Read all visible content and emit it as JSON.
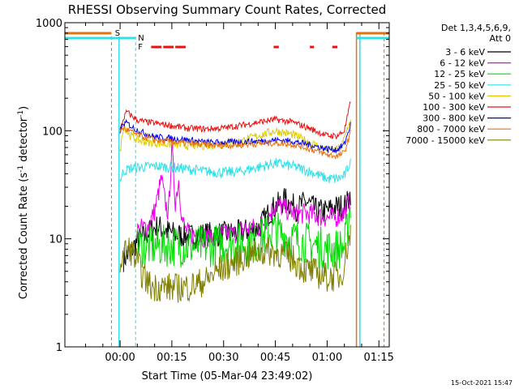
{
  "chart_data": {
    "type": "line",
    "title": "RHESSI Observing Summary Count Rates, Corrected",
    "xlabel": "Start Time (05-Mar-04 23:49:02)",
    "ylabel_main": "Corrected Count Rate (s",
    "ylabel_sup1": "-1",
    "ylabel_mid": " detector",
    "ylabel_sup2": "-1",
    "ylabel_end": ")",
    "y_scale": "log",
    "ylim": [
      1,
      1000
    ],
    "xlim_minutes": [
      -16,
      78
    ],
    "x_ticks": [
      {
        "minute": 0,
        "label": "00:00"
      },
      {
        "minute": 15,
        "label": "00:15"
      },
      {
        "minute": 30,
        "label": "00:30"
      },
      {
        "minute": 45,
        "label": "00:45"
      },
      {
        "minute": 60,
        "label": "01:00"
      },
      {
        "minute": 75,
        "label": "01:15"
      }
    ],
    "y_ticks": [
      {
        "value": 1,
        "label": "1"
      },
      {
        "value": 10,
        "label": "10"
      },
      {
        "value": 100,
        "label": "100"
      },
      {
        "value": 1000,
        "label": "1000"
      }
    ],
    "legend": {
      "placement": "right",
      "header_line1": "Det 1,3,4,5,6,9,",
      "header_line2": "Att 0"
    },
    "flags": [
      {
        "letter": "S",
        "color": "#e87010"
      },
      {
        "letter": "N",
        "color": "#30e0e8"
      },
      {
        "letter": "F",
        "color": "#ee1010"
      }
    ],
    "series": [
      {
        "name": "3 - 6 keV",
        "color": "#000000",
        "x": [
          1,
          3,
          4,
          5,
          7,
          9,
          11,
          13,
          16,
          20,
          25,
          30,
          35,
          40,
          43,
          45,
          48,
          51,
          54,
          57,
          60,
          62,
          64,
          65,
          66,
          67
        ],
        "y": [
          6.5,
          7.5,
          8.5,
          9.5,
          10.5,
          12,
          13,
          12,
          11,
          10.5,
          11,
          11,
          11.5,
          12.5,
          17,
          20,
          23,
          19,
          22,
          18,
          18,
          19.5,
          20,
          20,
          22,
          28
        ]
      },
      {
        "name": "6 - 12 keV",
        "color": "#ee00ee",
        "x": [
          5,
          8,
          10,
          12,
          13,
          14,
          15,
          16,
          17,
          18,
          19,
          20,
          23,
          26,
          30,
          33,
          36,
          40,
          43,
          45,
          48,
          51,
          55,
          58,
          62,
          65,
          66,
          67
        ],
        "y": [
          12,
          13,
          18,
          36,
          22,
          17,
          70,
          22,
          35,
          15,
          12,
          11,
          10.5,
          10.5,
          11,
          11,
          12.5,
          12.5,
          16,
          21,
          19,
          17,
          17,
          16,
          15.5,
          17.5,
          21,
          24
        ]
      },
      {
        "name": "12 - 25 keV",
        "color": "#00dd00",
        "x": [
          5,
          10,
          15,
          20,
          25,
          30,
          35,
          40,
          44,
          47,
          50,
          55,
          60,
          63,
          65,
          66,
          67
        ],
        "y": [
          8.5,
          8.5,
          8.7,
          8.5,
          8.5,
          9,
          9,
          9.5,
          12,
          11,
          10,
          9,
          8,
          8,
          8.5,
          13,
          25
        ]
      },
      {
        "name": "25 - 50 keV",
        "color": "#30e0e8",
        "x": [
          0,
          1,
          3,
          6,
          10,
          15,
          20,
          25,
          30,
          35,
          40,
          45,
          50,
          55,
          60,
          63,
          65,
          66,
          67
        ],
        "y": [
          35,
          42,
          45,
          46,
          47,
          46,
          44,
          42,
          41,
          42,
          46,
          50,
          47,
          42,
          36,
          36,
          38,
          45,
          55
        ]
      },
      {
        "name": "50 - 100 keV",
        "color": "#ddcc00",
        "x": [
          0,
          1,
          2,
          3,
          5,
          8,
          12,
          16,
          20,
          25,
          30,
          35,
          40,
          45,
          50,
          55,
          60,
          62,
          64,
          65,
          66,
          67
        ],
        "y": [
          62,
          115,
          98,
          90,
          82,
          78,
          76,
          74,
          73,
          73,
          75,
          80,
          90,
          100,
          92,
          78,
          66,
          65,
          70,
          85,
          110,
          125
        ]
      },
      {
        "name": "100 - 300 keV",
        "color": "#ee1010",
        "x": [
          0,
          1,
          2,
          3,
          5,
          8,
          12,
          16,
          20,
          25,
          30,
          35,
          40,
          45,
          50,
          55,
          60,
          63,
          65,
          66,
          67
        ],
        "y": [
          100,
          130,
          150,
          140,
          125,
          120,
          115,
          110,
          105,
          104,
          106,
          112,
          120,
          127,
          120,
          105,
          90,
          90,
          100,
          140,
          200
        ]
      },
      {
        "name": "300 - 800 keV",
        "color": "#0000ee",
        "x": [
          0,
          1,
          2,
          4,
          7,
          10,
          15,
          20,
          25,
          30,
          35,
          40,
          45,
          50,
          55,
          60,
          63,
          65,
          66,
          67
        ],
        "y": [
          100,
          115,
          118,
          105,
          95,
          88,
          85,
          82,
          78,
          78,
          79,
          80,
          82,
          80,
          74,
          68,
          67,
          75,
          95,
          120
        ]
      },
      {
        "name": "800 - 7000 keV",
        "color": "#e87010",
        "x": [
          0,
          1,
          2,
          4,
          7,
          10,
          15,
          20,
          25,
          30,
          35,
          40,
          45,
          50,
          55,
          60,
          63,
          65,
          66,
          67
        ],
        "y": [
          100,
          105,
          102,
          95,
          87,
          82,
          79,
          76,
          74,
          73,
          74,
          76,
          77,
          75,
          68,
          60,
          58,
          63,
          80,
          100
        ]
      },
      {
        "name": "7000 - 15000 keV",
        "color": "#808000",
        "x": [
          0,
          1,
          3,
          5,
          6,
          7,
          8,
          9,
          12,
          16,
          20,
          25,
          28,
          33,
          36,
          40,
          44,
          47,
          50,
          53,
          56,
          60,
          64,
          65,
          66,
          67
        ],
        "y": [
          6,
          7.5,
          8,
          6,
          5,
          4.4,
          4,
          3.6,
          3.6,
          3.5,
          3.6,
          4.1,
          5,
          6,
          6.8,
          7.5,
          7.6,
          7.2,
          6.5,
          5.3,
          4.9,
          4.4,
          4.5,
          6,
          9,
          12
        ]
      }
    ],
    "annotations": [
      {
        "text": "15-Oct-2021 15:47",
        "placement": "bottom-right"
      }
    ]
  }
}
